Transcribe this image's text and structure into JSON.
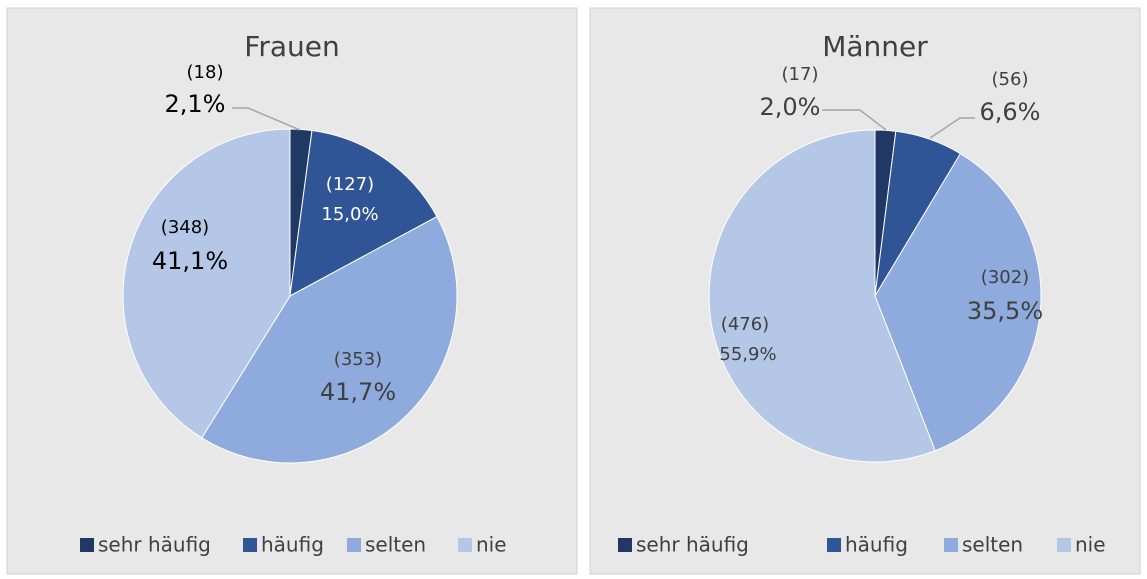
{
  "chart_data": [
    {
      "type": "pie",
      "title": "Frauen",
      "categories": [
        "sehr häufig",
        "häufig",
        "selten",
        "nie"
      ],
      "values": [
        2.1,
        15.0,
        41.7,
        41.1
      ],
      "value_labels": [
        "2,1%",
        "15,0%",
        "41,7%",
        "41,1%"
      ],
      "counts": [
        18,
        127,
        353,
        348
      ],
      "count_labels": [
        "(18)",
        "(127)",
        "(353)",
        "(348)"
      ],
      "colors": [
        "#1f3864",
        "#2f5597",
        "#8faadc",
        "#b4c7e7"
      ],
      "legend": "bottom"
    },
    {
      "type": "pie",
      "title": "Männer",
      "categories": [
        "sehr häufig",
        "häufig",
        "selten",
        "nie"
      ],
      "values": [
        2.0,
        6.6,
        35.5,
        55.9
      ],
      "value_labels": [
        "2,0%",
        "6,6%",
        "35,5%",
        "55,9%"
      ],
      "counts": [
        17,
        56,
        302,
        476
      ],
      "count_labels": [
        "(17)",
        "(56)",
        "(302)",
        "(476)"
      ],
      "colors": [
        "#1f3864",
        "#2f5597",
        "#8faadc",
        "#b4c7e7"
      ],
      "legend": "bottom"
    }
  ]
}
